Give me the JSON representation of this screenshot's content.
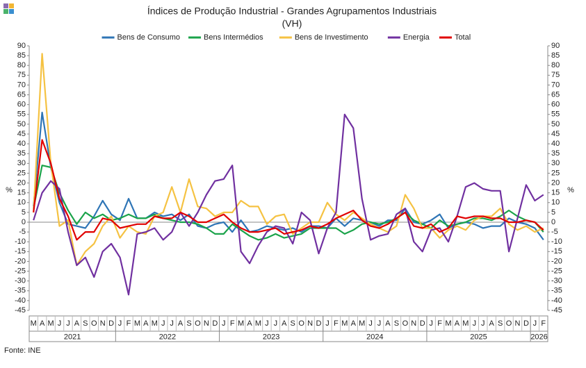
{
  "chart_data": {
    "type": "line",
    "title": "Índices de Produção Industrial - Grandes Agrupamentos Industriais",
    "subtitle": "(VH)",
    "y_label": "%",
    "y2_label": "%",
    "source": "Fonte: INE",
    "categories": [
      "M",
      "A",
      "M",
      "J",
      "J",
      "A",
      "S",
      "O",
      "N",
      "D",
      "J",
      "F",
      "M",
      "A",
      "M",
      "J",
      "J",
      "A",
      "S",
      "O",
      "N",
      "D",
      "J",
      "F",
      "M",
      "A",
      "M",
      "J",
      "J",
      "A",
      "S",
      "O",
      "N",
      "D",
      "J",
      "F",
      "M",
      "A",
      "M",
      "J",
      "J",
      "A",
      "S",
      "O",
      "N",
      "D",
      "J",
      "F",
      "M",
      "A",
      "M",
      "J",
      "J",
      "A",
      "S",
      "O",
      "N",
      "D",
      "J",
      "F"
    ],
    "x_groups": [
      {
        "label": "2021",
        "count": 10
      },
      {
        "label": "2022",
        "count": 12
      },
      {
        "label": "2023",
        "count": 12
      },
      {
        "label": "2024",
        "count": 12
      },
      {
        "label": "2025",
        "count": 12
      },
      {
        "label": "2026",
        "count": 2
      }
    ],
    "ylim": [
      -45,
      90
    ],
    "yticks": [
      -45,
      -40,
      -35,
      -30,
      -25,
      -20,
      -15,
      -10,
      -5,
      0,
      5,
      10,
      15,
      20,
      25,
      30,
      35,
      40,
      45,
      50,
      55,
      60,
      65,
      70,
      75,
      80,
      85,
      90
    ],
    "y2lim": [
      -45,
      90
    ],
    "y2ticks": [
      -45,
      -40,
      -35,
      -30,
      -25,
      -20,
      -15,
      -10,
      -5,
      0,
      5,
      10,
      15,
      20,
      25,
      30,
      35,
      40,
      45,
      50,
      55,
      60,
      65,
      70,
      75,
      80,
      85,
      90
    ],
    "series": [
      {
        "name": "Bens de Consumo",
        "color": "#2e75b6",
        "values": [
          8,
          56,
          28,
          10,
          -1,
          -2,
          -3,
          3,
          11,
          4,
          1,
          12,
          2,
          2,
          5,
          3,
          4,
          1,
          4,
          -2,
          -3,
          -1,
          0,
          -5,
          1,
          -5,
          -4,
          -2,
          -3,
          -4,
          -3,
          -5,
          -2,
          -2,
          -3,
          2,
          -2,
          2,
          1,
          0,
          -2,
          1,
          1,
          7,
          0,
          -1,
          1,
          4,
          -3,
          -1,
          0,
          -1,
          -3,
          -2,
          -2,
          2,
          0,
          -1,
          -3,
          -9
        ]
      },
      {
        "name": "Bens Intermédios",
        "color": "#1aa34a",
        "values": [
          7,
          29,
          28,
          15,
          6,
          -1,
          5,
          2,
          4,
          1,
          2,
          4,
          2,
          2,
          4,
          2,
          1,
          0,
          0,
          -1,
          -3,
          -6,
          -6,
          -1,
          -4,
          -7,
          -9,
          -8,
          -6,
          -8,
          -7,
          -6,
          -3,
          -3,
          -3,
          -3,
          -6,
          -4,
          -1,
          0,
          -1,
          0,
          2,
          5,
          1,
          -1,
          -3,
          1,
          -2,
          -1,
          0,
          2,
          2,
          1,
          3,
          6,
          3,
          1,
          0,
          -5
        ]
      },
      {
        "name": "Bens de Investimento",
        "color": "#f5c242",
        "values": [
          5,
          86,
          30,
          -2,
          1,
          -22,
          -15,
          -11,
          -2,
          3,
          -8,
          -2,
          -5,
          -6,
          3,
          5,
          18,
          5,
          22,
          8,
          7,
          3,
          5,
          5,
          11,
          8,
          8,
          -1,
          3,
          4,
          -6,
          -3,
          0,
          0,
          10,
          4,
          1,
          5,
          2,
          -1,
          -3,
          -5,
          -2,
          14,
          7,
          -3,
          -3,
          -8,
          -4,
          -2,
          -4,
          1,
          3,
          3,
          7,
          -1,
          -4,
          -2,
          -5,
          -3
        ]
      },
      {
        "name": "Energia",
        "color": "#7030a0",
        "values": [
          1,
          15,
          21,
          17,
          -5,
          -22,
          -18,
          -28,
          -15,
          -11,
          -18,
          -37,
          -6,
          -5,
          -3,
          -9,
          -5,
          5,
          -2,
          5,
          14,
          21,
          22,
          29,
          -15,
          -21,
          -12,
          -5,
          -2,
          -3,
          -11,
          5,
          1,
          -16,
          -3,
          5,
          55,
          48,
          12,
          -9,
          -7,
          -6,
          4,
          7,
          -10,
          -15,
          -4,
          -3,
          -10,
          3,
          18,
          20,
          17,
          16,
          16,
          -15,
          2,
          19,
          11,
          14
        ]
      },
      {
        "name": "Total",
        "color": "#e00000",
        "values": [
          5,
          42,
          30,
          12,
          3,
          -9,
          -5,
          -5,
          2,
          1,
          -3,
          -2,
          -1,
          -1,
          3,
          2,
          2,
          5,
          3,
          0,
          0,
          2,
          4,
          0,
          -3,
          -5,
          -5,
          -4,
          -3,
          -6,
          -5,
          -4,
          -2,
          -3,
          -1,
          2,
          4,
          6,
          1,
          -2,
          -3,
          -1,
          2,
          5,
          -2,
          -3,
          -1,
          -5,
          -3,
          3,
          2,
          3,
          3,
          2,
          2,
          0,
          0,
          1,
          0,
          -4
        ]
      }
    ]
  }
}
